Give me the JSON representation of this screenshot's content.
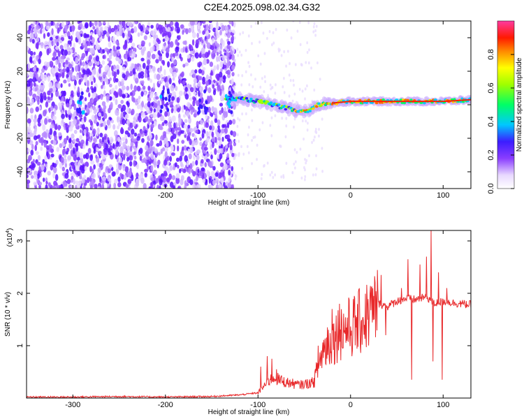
{
  "title": "C2E4.2025.098.02.34.G32",
  "chart_data": [
    {
      "type": "heatmap",
      "xlabel": "Height of straight line (km)",
      "ylabel": "Frequency (Hz)",
      "xlim": [
        -350,
        130
      ],
      "ylim": [
        -50,
        50
      ],
      "x_ticks": [
        -300,
        -200,
        -100,
        0,
        100
      ],
      "x_tick_labels": [
        "-300",
        "-200",
        "-100",
        "0",
        "100"
      ],
      "y_ticks": [
        -40,
        -20,
        0,
        20,
        40
      ],
      "y_tick_labels": [
        "-40",
        "-20",
        "0",
        "20",
        "40"
      ],
      "colorbar": {
        "label": "Normalized spectral amplitude",
        "range": [
          0,
          1
        ],
        "ticks": [
          0,
          0.2,
          0.4,
          0.6,
          0.8
        ],
        "tick_labels": [
          "0.0",
          "0.2",
          "0.4",
          "0.6",
          "0.8"
        ]
      },
      "ridge": {
        "x": [
          -330,
          -290,
          -250,
          -200,
          -160,
          -130,
          -110,
          -90,
          -70,
          -55,
          -45,
          -35,
          -20,
          0,
          50,
          100,
          130
        ],
        "frequency": [
          3,
          2,
          1,
          5,
          3,
          4,
          3,
          1,
          -2,
          -4,
          -4,
          0,
          1,
          2,
          2,
          2,
          3
        ]
      },
      "grid": false
    },
    {
      "type": "line",
      "xlabel": "Height of straight line (km)",
      "ylabel": "SNR (10 * v/v)",
      "y_multiplier": "(x10",
      "y_multiplier_exp": "4",
      "y_multiplier_close": ")",
      "xlim": [
        -350,
        130
      ],
      "ylim": [
        0,
        3.2
      ],
      "x_ticks": [
        -300,
        -200,
        -100,
        0,
        100
      ],
      "x_tick_labels": [
        "-300",
        "-200",
        "-100",
        "0",
        "100"
      ],
      "y_ticks": [
        1,
        2,
        3
      ],
      "y_tick_labels": [
        "1",
        "2",
        "3"
      ],
      "series_color": "#e8282a",
      "x": [
        -350,
        -300,
        -250,
        -200,
        -150,
        -120,
        -100,
        -85,
        -70,
        -55,
        -40,
        -30,
        -20,
        -10,
        0,
        10,
        20,
        30,
        40,
        50,
        60,
        70,
        80,
        85,
        90,
        100,
        110,
        120,
        130
      ],
      "y": [
        0.02,
        0.02,
        0.03,
        0.02,
        0.03,
        0.06,
        0.1,
        0.4,
        0.3,
        0.25,
        0.3,
        0.9,
        1.1,
        1.3,
        1.35,
        1.45,
        1.6,
        1.8,
        1.75,
        1.85,
        1.9,
        1.88,
        1.92,
        1.9,
        1.8,
        1.85,
        1.82,
        1.8,
        1.78
      ],
      "spikes": [
        {
          "x": -97,
          "y": 0.6
        },
        {
          "x": -90,
          "y": 0.8
        },
        {
          "x": -85,
          "y": 0.75
        },
        {
          "x": -80,
          "y": 0.55
        },
        {
          "x": -35,
          "y": 1.0
        },
        {
          "x": -25,
          "y": 1.35
        },
        {
          "x": -20,
          "y": 1.7
        },
        {
          "x": -12,
          "y": 1.8
        },
        {
          "x": 25,
          "y": 1.95
        },
        {
          "x": 33,
          "y": 2.35
        },
        {
          "x": 38,
          "y": 1.2
        },
        {
          "x": 55,
          "y": 2.1
        },
        {
          "x": 62,
          "y": 2.65
        },
        {
          "x": 66,
          "y": 0.35
        },
        {
          "x": 75,
          "y": 2.55
        },
        {
          "x": 82,
          "y": 2.7
        },
        {
          "x": 87,
          "y": 3.2
        },
        {
          "x": 89,
          "y": 0.7
        },
        {
          "x": 95,
          "y": 2.4
        },
        {
          "x": 99,
          "y": 0.35
        },
        {
          "x": 104,
          "y": 2.1
        }
      ],
      "grid": false
    }
  ]
}
